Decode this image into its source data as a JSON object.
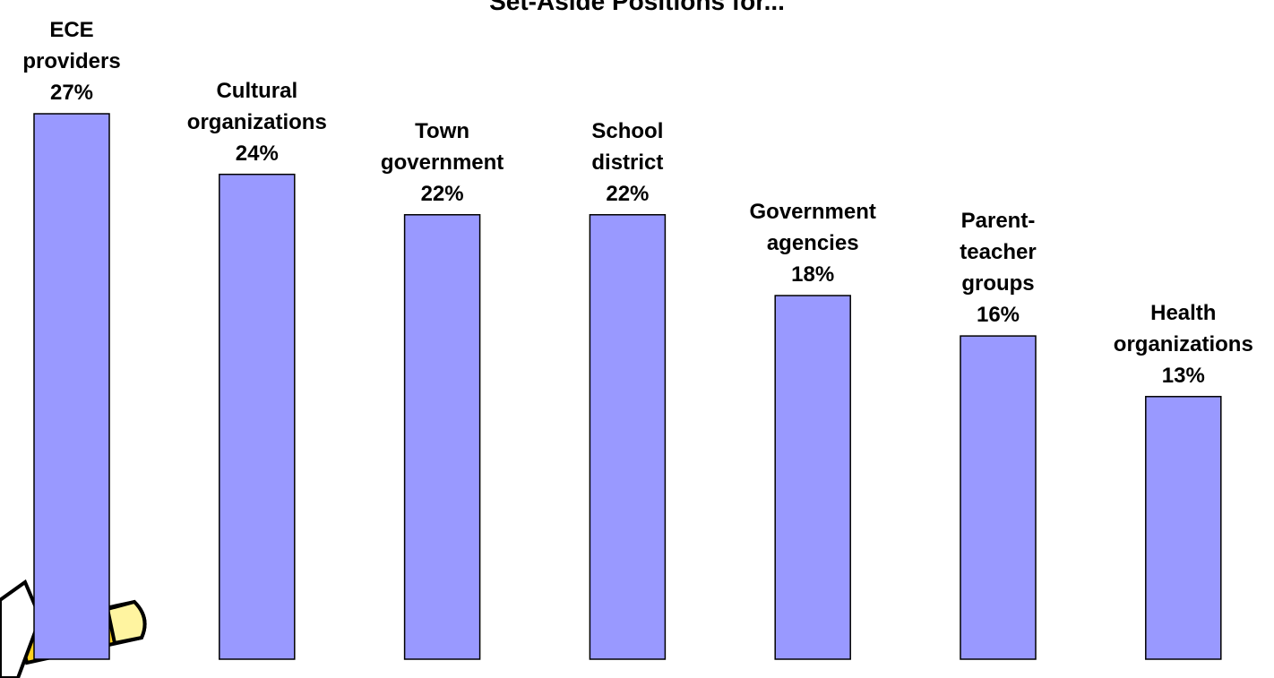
{
  "chart_data": {
    "type": "bar",
    "title": "Set-Aside Positions for...",
    "categories": [
      "ECE providers",
      "Cultural organizations",
      "Town government",
      "School district",
      "Government agencies",
      "Parent-teacher groups",
      "Health organizations"
    ],
    "values": [
      27,
      24,
      22,
      22,
      18,
      16,
      13
    ],
    "value_labels": [
      "27%",
      "24%",
      "22%",
      "22%",
      "18%",
      "16%",
      "13%"
    ],
    "color": "#9999ff"
  }
}
